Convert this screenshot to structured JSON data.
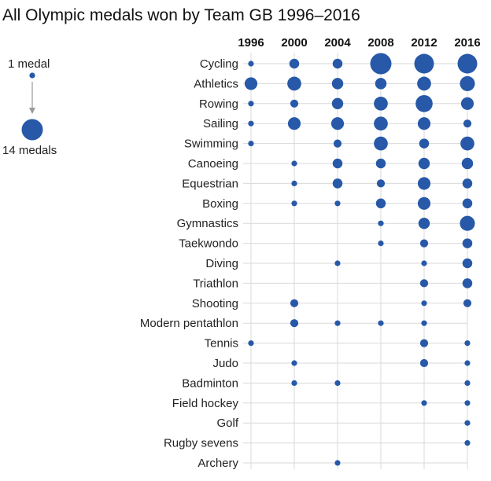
{
  "chart_data": {
    "type": "dot-matrix",
    "title": "All Olympic medals won by Team GB 1996–2016",
    "years": [
      "1996",
      "2000",
      "2004",
      "2008",
      "2012",
      "2016"
    ],
    "legend": {
      "min_label": "1 medal",
      "min_value": 1,
      "max_label": "14 medals",
      "max_value": 14
    },
    "colors": {
      "dot": "#2759a8",
      "grid": "#d9d9d9",
      "arrow": "#9a9a9a"
    },
    "sports": [
      {
        "name": "Cycling",
        "medals": [
          1,
          3,
          3,
          14,
          12,
          12
        ]
      },
      {
        "name": "Athletics",
        "medals": [
          5,
          6,
          4,
          4,
          6,
          7
        ]
      },
      {
        "name": "Rowing",
        "medals": [
          1,
          2,
          4,
          6,
          9,
          5
        ]
      },
      {
        "name": "Sailing",
        "medals": [
          1,
          5,
          5,
          6,
          5,
          2
        ]
      },
      {
        "name": "Swimming",
        "medals": [
          1,
          0,
          2,
          6,
          3,
          6
        ]
      },
      {
        "name": "Canoeing",
        "medals": [
          0,
          1,
          3,
          3,
          4,
          4
        ]
      },
      {
        "name": "Equestrian",
        "medals": [
          0,
          1,
          3,
          2,
          5,
          3
        ]
      },
      {
        "name": "Boxing",
        "medals": [
          0,
          1,
          1,
          3,
          5,
          3
        ]
      },
      {
        "name": "Gymnastics",
        "medals": [
          0,
          0,
          0,
          1,
          4,
          7
        ]
      },
      {
        "name": "Taekwondo",
        "medals": [
          0,
          0,
          0,
          1,
          2,
          3
        ]
      },
      {
        "name": "Diving",
        "medals": [
          0,
          0,
          1,
          0,
          1,
          3
        ]
      },
      {
        "name": "Triathlon",
        "medals": [
          0,
          0,
          0,
          0,
          2,
          3
        ]
      },
      {
        "name": "Shooting",
        "medals": [
          0,
          2,
          0,
          0,
          1,
          2
        ]
      },
      {
        "name": "Modern pentathlon",
        "medals": [
          0,
          2,
          1,
          1,
          1,
          0
        ]
      },
      {
        "name": "Tennis",
        "medals": [
          1,
          0,
          0,
          0,
          2,
          1
        ]
      },
      {
        "name": "Judo",
        "medals": [
          0,
          1,
          0,
          0,
          2,
          1
        ]
      },
      {
        "name": "Badminton",
        "medals": [
          0,
          1,
          1,
          0,
          0,
          1
        ]
      },
      {
        "name": "Field hockey",
        "medals": [
          0,
          0,
          0,
          0,
          1,
          1
        ]
      },
      {
        "name": "Golf",
        "medals": [
          0,
          0,
          0,
          0,
          0,
          1
        ]
      },
      {
        "name": "Rugby sevens",
        "medals": [
          0,
          0,
          0,
          0,
          0,
          1
        ]
      },
      {
        "name": "Archery",
        "medals": [
          0,
          0,
          1,
          0,
          0,
          0
        ]
      }
    ]
  }
}
